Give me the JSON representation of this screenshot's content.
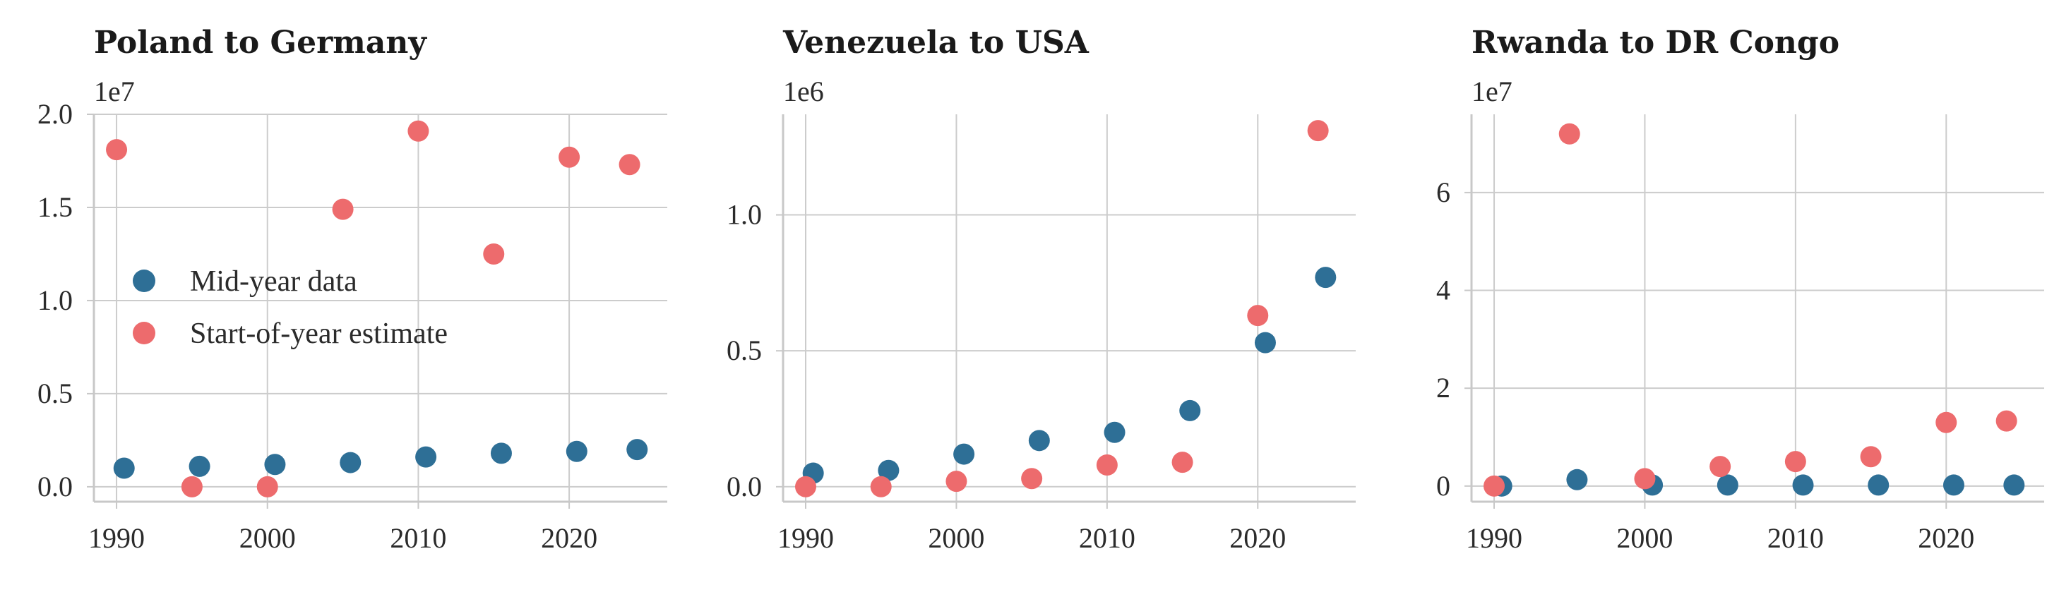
{
  "colors": {
    "mid_year": "#2e6f96",
    "start_of_year": "#ed6b6d"
  },
  "legend": {
    "entries": [
      {
        "label": "Mid-year data",
        "color": "#2e6f96"
      },
      {
        "label": "Start-of-year estimate",
        "color": "#ed6b6d"
      }
    ],
    "placement": "center-left of first panel"
  },
  "chart_data": [
    {
      "type": "scatter",
      "title": "Poland to Germany",
      "y_offset_label": "1e7",
      "scale": 10000000,
      "xlim": [
        1988.5,
        2026.5
      ],
      "ylim": [
        -0.08,
        2.0
      ],
      "x_ticks": [
        1990,
        2000,
        2010,
        2020
      ],
      "y_ticks": [
        0.0,
        0.5,
        1.0,
        1.5,
        2.0
      ],
      "y_tick_labels": [
        "0.0",
        "0.5",
        "1.0",
        "1.5",
        "2.0"
      ],
      "grid": true,
      "series": [
        {
          "name": "Mid-year data",
          "x": [
            1990.5,
            1995.5,
            2000.5,
            2005.5,
            2010.5,
            2015.5,
            2020.5,
            2024.5
          ],
          "y": [
            0.1,
            0.11,
            0.12,
            0.13,
            0.16,
            0.18,
            0.19,
            0.2
          ]
        },
        {
          "name": "Start-of-year estimate",
          "x": [
            1990,
            1995,
            2000,
            2005,
            2010,
            2015,
            2020,
            2024
          ],
          "y": [
            1.81,
            0.0,
            0.0,
            1.49,
            1.91,
            1.25,
            1.77,
            1.73
          ]
        }
      ]
    },
    {
      "type": "scatter",
      "title": "Venezuela to USA",
      "y_offset_label": "1e6",
      "scale": 1000000,
      "xlim": [
        1988.5,
        2026.5
      ],
      "ylim": [
        -0.055,
        1.37
      ],
      "x_ticks": [
        1990,
        2000,
        2010,
        2020
      ],
      "y_ticks": [
        0.0,
        0.5,
        1.0
      ],
      "y_tick_labels": [
        "0.0",
        "0.5",
        "1.0"
      ],
      "grid": true,
      "series": [
        {
          "name": "Mid-year data",
          "x": [
            1990.5,
            1995.5,
            2000.5,
            2005.5,
            2010.5,
            2015.5,
            2020.5,
            2024.5
          ],
          "y": [
            0.05,
            0.06,
            0.12,
            0.17,
            0.2,
            0.28,
            0.53,
            0.77
          ]
        },
        {
          "name": "Start-of-year estimate",
          "x": [
            1990,
            1995,
            2000,
            2005,
            2010,
            2015,
            2020,
            2024
          ],
          "y": [
            0.0,
            0.0,
            0.02,
            0.03,
            0.08,
            0.09,
            0.63,
            1.31
          ]
        }
      ]
    },
    {
      "type": "scatter",
      "title": "Rwanda to DR Congo",
      "y_offset_label": "1e7",
      "scale": 10000000,
      "xlim": [
        1988.5,
        2026.5
      ],
      "ylim": [
        -0.32,
        7.6
      ],
      "x_ticks": [
        1990,
        2000,
        2010,
        2020
      ],
      "y_ticks": [
        0,
        2,
        4,
        6
      ],
      "y_tick_labels": [
        "0",
        "2",
        "4",
        "6"
      ],
      "grid": true,
      "series": [
        {
          "name": "Mid-year data",
          "x": [
            1990.5,
            1995.5,
            2000.5,
            2005.5,
            2010.5,
            2015.5,
            2020.5,
            2024.5
          ],
          "y": [
            0.0,
            0.13,
            0.02,
            0.02,
            0.02,
            0.02,
            0.02,
            0.02
          ]
        },
        {
          "name": "Start-of-year estimate",
          "x": [
            1990,
            1995,
            2000,
            2005,
            2010,
            2015,
            2020,
            2024
          ],
          "y": [
            0.0,
            7.2,
            0.15,
            0.4,
            0.5,
            0.6,
            1.3,
            1.33
          ]
        }
      ]
    }
  ]
}
